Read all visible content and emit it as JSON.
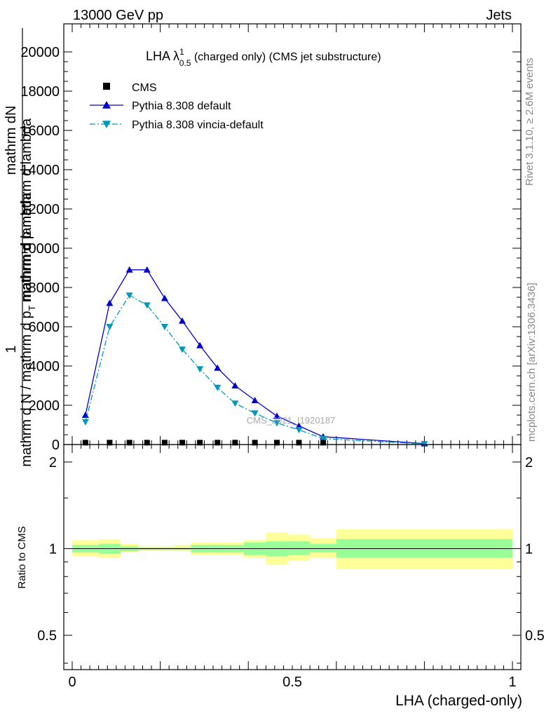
{
  "header": {
    "left": "13000 GeV pp",
    "right": "Jets"
  },
  "side_labels": {
    "rivet": "Rivet 3.1.10, ≥ 2.6M events",
    "mcplots": "mcplots.cern.ch [arXiv:1306.3436]"
  },
  "watermark": "CMS_2021_I1920187",
  "legend": [
    {
      "label": "CMS",
      "color": "#000000",
      "marker": "square"
    },
    {
      "label": "Pythia 8.308 default",
      "color": "#0000cc",
      "marker": "triangle-up"
    },
    {
      "label": "Pythia 8.308 vincia-default",
      "color": "#0099bb",
      "marker": "triangle-down"
    }
  ],
  "chart_data": [
    {
      "type": "line",
      "title_main": "LHA λ",
      "title_sup": "1",
      "title_sub": "0.5",
      "title_rest": " (charged only) (CMS jet substructure)",
      "ylabel_top": "1",
      "ylabel_numerator": "mathrm dN",
      "ylabel_num_sub": "T",
      "ylabel_num_tail": "mathrm d p",
      "ylabel_den_pre": "mathrm d N / mathrm d p",
      "ylabel_den_sub": "T",
      "ylabel_den_tail": " mathrm d lambda",
      "ylabel_mid": "mathrm d p mathrm d lambda",
      "xlim": [
        0,
        1
      ],
      "ylim": [
        0,
        20000
      ],
      "yticks": [
        "0",
        "2000",
        "4000",
        "6000",
        "8000",
        "10000",
        "12000",
        "14000",
        "16000",
        "18000",
        "20000"
      ],
      "series": [
        {
          "name": "CMS",
          "x": [
            0.03,
            0.085,
            0.13,
            0.17,
            0.21,
            0.25,
            0.29,
            0.33,
            0.37,
            0.415,
            0.465,
            0.515,
            0.57
          ],
          "y": [
            60,
            60,
            60,
            60,
            60,
            60,
            60,
            60,
            60,
            60,
            60,
            60,
            60
          ]
        },
        {
          "name": "Pythia 8.308 default",
          "x": [
            0.03,
            0.085,
            0.13,
            0.17,
            0.21,
            0.25,
            0.29,
            0.33,
            0.37,
            0.415,
            0.465,
            0.515,
            0.57,
            0.8
          ],
          "y": [
            1500,
            7200,
            8900,
            8900,
            7450,
            6300,
            5050,
            3900,
            3000,
            2250,
            1450,
            950,
            400,
            50
          ]
        },
        {
          "name": "Pythia 8.308 vincia-default",
          "x": [
            0.03,
            0.085,
            0.13,
            0.17,
            0.21,
            0.25,
            0.29,
            0.33,
            0.37,
            0.415,
            0.465,
            0.515,
            0.57,
            0.8
          ],
          "y": [
            1150,
            6000,
            7600,
            7100,
            6000,
            4850,
            3850,
            2900,
            2100,
            1600,
            1100,
            750,
            300,
            30
          ]
        }
      ]
    },
    {
      "type": "area",
      "ylabel": "Ratio to CMS",
      "xlabel": "LHA (charged-only)",
      "xlim": [
        0,
        1
      ],
      "ylim": [
        0.38,
        2.3
      ],
      "log_y": true,
      "yticks_left": [
        {
          "value": 0.5,
          "label": "0.5"
        },
        {
          "value": 1,
          "label": "1"
        },
        {
          "value": 2,
          "label": "2"
        }
      ],
      "xticks": [
        {
          "value": 0,
          "label": "0"
        },
        {
          "value": 0.5,
          "label": "0.5"
        },
        {
          "value": 1,
          "label": "1"
        }
      ],
      "bins": [
        0,
        0.06,
        0.11,
        0.15,
        0.19,
        0.23,
        0.27,
        0.31,
        0.35,
        0.39,
        0.44,
        0.49,
        0.54,
        0.6,
        1.0
      ],
      "inner_band": {
        "lo": [
          0.97,
          0.96,
          0.98,
          0.99,
          0.99,
          0.99,
          0.97,
          0.97,
          0.97,
          0.95,
          0.94,
          0.95,
          0.97,
          0.93
        ],
        "hi": [
          1.03,
          1.04,
          1.02,
          1.01,
          1.01,
          1.01,
          1.03,
          1.03,
          1.03,
          1.05,
          1.06,
          1.06,
          1.04,
          1.08
        ]
      },
      "outer_band": {
        "lo": [
          0.94,
          0.93,
          0.97,
          0.985,
          0.985,
          0.98,
          0.95,
          0.95,
          0.95,
          0.93,
          0.88,
          0.91,
          0.93,
          0.85
        ],
        "hi": [
          1.07,
          1.08,
          1.04,
          1.02,
          1.02,
          1.03,
          1.05,
          1.05,
          1.05,
          1.07,
          1.14,
          1.12,
          1.09,
          1.17
        ]
      },
      "inner_color": "#99ff99",
      "outer_color": "#ffff99"
    }
  ]
}
